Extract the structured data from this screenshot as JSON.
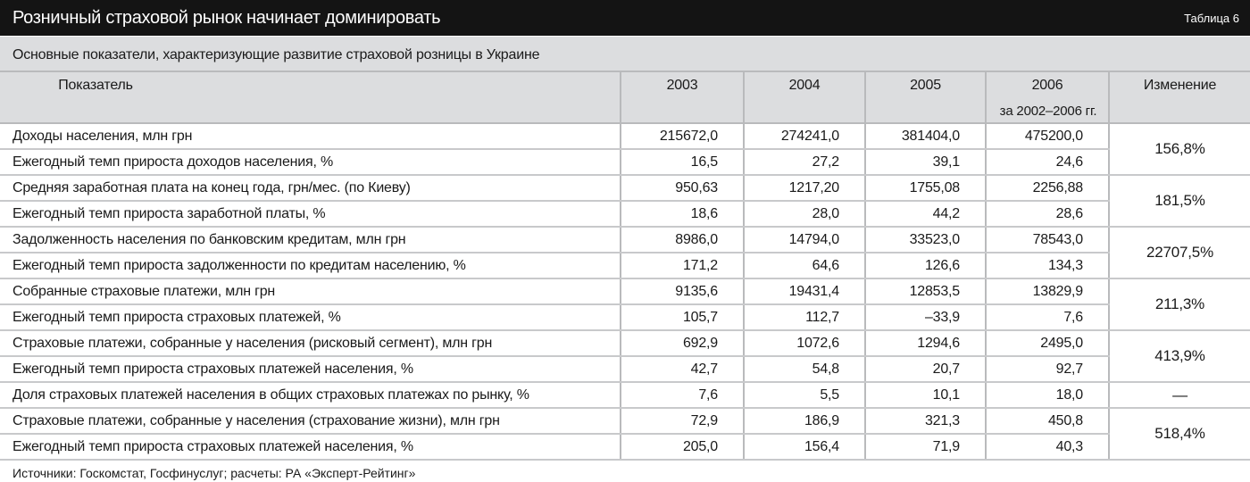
{
  "title": "Розничный страховой рынок начинает доминировать",
  "table_number": "Таблица 6",
  "subtitle": "Основные показатели, характеризующие развитие страховой розницы в Украине",
  "headers": {
    "indicator": "Показатель",
    "y2003": "2003",
    "y2004": "2004",
    "y2005": "2005",
    "y2006": "2006",
    "change": "Изменение",
    "change_note": "за 2002–2006 гг."
  },
  "rows": [
    {
      "label": "Доходы населения, млн грн",
      "v": [
        "215672,0",
        "274241,0",
        "381404,0",
        "475200,0"
      ]
    },
    {
      "label": "Ежегодный темп прироста доходов населения, %",
      "v": [
        "16,5",
        "27,2",
        "39,1",
        "24,6"
      ]
    },
    {
      "label": "Средняя заработная плата на конец года, грн/мес. (по Киеву)",
      "v": [
        "950,63",
        "1217,20",
        "1755,08",
        "2256,88"
      ]
    },
    {
      "label": "Ежегодный темп прироста заработной платы, %",
      "v": [
        "18,6",
        "28,0",
        "44,2",
        "28,6"
      ]
    },
    {
      "label": "Задолженность населения по банковским кредитам, млн грн",
      "v": [
        "8986,0",
        "14794,0",
        "33523,0",
        "78543,0"
      ]
    },
    {
      "label": "Ежегодный темп прироста задолженности по кредитам населению, %",
      "v": [
        "171,2",
        "64,6",
        "126,6",
        "134,3"
      ]
    },
    {
      "label": "Собранные страховые платежи, млн грн",
      "v": [
        "9135,6",
        "19431,4",
        "12853,5",
        "13829,9"
      ]
    },
    {
      "label": "Ежегодный темп прироста страховых платежей, %",
      "v": [
        "105,7",
        "112,7",
        "–33,9",
        "7,6"
      ]
    },
    {
      "label": "Страховые платежи, собранные у населения (рисковый сегмент), млн грн",
      "v": [
        "692,9",
        "1072,6",
        "1294,6",
        "2495,0"
      ]
    },
    {
      "label": "Ежегодный темп прироста страховых платежей населения, %",
      "v": [
        "42,7",
        "54,8",
        "20,7",
        "92,7"
      ]
    },
    {
      "label": "Доля страховых платежей населения в общих страховых платежах по рынку, %",
      "v": [
        "7,6",
        "5,5",
        "10,1",
        "18,0"
      ]
    },
    {
      "label": "Страховые платежи, собранные у населения (страхование жизни), млн грн",
      "v": [
        "72,9",
        "186,9",
        "321,3",
        "450,8"
      ]
    },
    {
      "label": "Ежегодный темп прироста страховых платежей населения, %",
      "v": [
        "205,0",
        "156,4",
        "71,9",
        "40,3"
      ]
    }
  ],
  "changes": [
    "156,8%",
    "181,5%",
    "22707,5%",
    "211,3%",
    "413,9%",
    "—",
    "518,4%"
  ],
  "source": "Источники: Госкомстат, Госфинуслуг; расчеты: РА «Эксперт-Рейтинг»"
}
